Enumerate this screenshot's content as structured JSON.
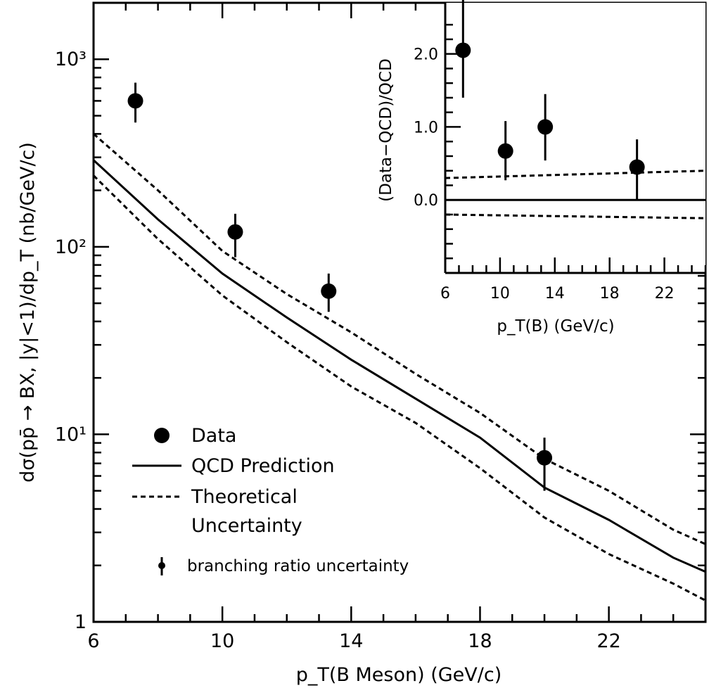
{
  "chart_data": [
    {
      "type": "scatter",
      "xlabel": "p_T(B Meson) (GeV/c)",
      "ylabel": "dσ(pp̄ → BX, |y|<1)/dp_T (nb/GeV/c)",
      "xlim": [
        6,
        25
      ],
      "ylim": [
        1,
        2000
      ],
      "yscale": "log",
      "x_ticks": [
        "6",
        "10",
        "14",
        "18",
        "22"
      ],
      "x_tick_values": [
        6,
        10,
        14,
        18,
        22
      ],
      "y_ticks": [
        "1",
        "10¹",
        "10²",
        "10³"
      ],
      "y_tick_values": [
        1,
        10,
        100,
        1000
      ],
      "legend_position": "bottom-left",
      "legend": [
        {
          "label": "Data",
          "marker": "filled-circle"
        },
        {
          "label": "QCD Prediction",
          "line": "solid"
        },
        {
          "label": "Theoretical",
          "line": "dashed"
        },
        {
          "label": "Uncertainty",
          "line": "none"
        },
        {
          "label": "branching ratio uncertainty",
          "marker": "small-dot-errorbar"
        }
      ],
      "series": [
        {
          "name": "Data",
          "kind": "points",
          "x": [
            7.3,
            10.4,
            13.3,
            20.0
          ],
          "y": [
            600,
            120,
            58,
            7.5
          ],
          "y_err_low": [
            460,
            88,
            45,
            5.0
          ],
          "y_err_high": [
            750,
            150,
            72,
            9.6
          ]
        },
        {
          "name": "QCD Prediction",
          "kind": "line",
          "style": "solid",
          "x": [
            6,
            8,
            10,
            12,
            14,
            16,
            18,
            20,
            22,
            24,
            25
          ],
          "y": [
            290,
            140,
            72,
            42,
            25,
            15.5,
            9.6,
            5.2,
            3.5,
            2.2,
            1.85
          ]
        },
        {
          "name": "Theoretical Uncertainty (upper)",
          "kind": "line",
          "style": "dashed",
          "x": [
            6,
            8,
            10,
            12,
            14,
            16,
            18,
            20,
            22,
            24,
            25
          ],
          "y": [
            400,
            200,
            95,
            56,
            35,
            21,
            13,
            7.4,
            5.0,
            3.1,
            2.6
          ]
        },
        {
          "name": "Theoretical Uncertainty (lower)",
          "kind": "line",
          "style": "dashed",
          "x": [
            6,
            8,
            10,
            12,
            14,
            16,
            18,
            20,
            22,
            24,
            25
          ],
          "y": [
            240,
            110,
            55,
            31,
            18,
            11.5,
            6.6,
            3.6,
            2.3,
            1.6,
            1.3
          ]
        }
      ]
    },
    {
      "type": "scatter",
      "inset": true,
      "xlabel": "p_T(B) (GeV/c)",
      "ylabel": "(Data−QCD)/QCD",
      "xlim": [
        6,
        25
      ],
      "ylim": [
        -1.0,
        2.7
      ],
      "x_ticks": [
        "6",
        "10",
        "14",
        "18",
        "22"
      ],
      "x_tick_values": [
        6,
        10,
        14,
        18,
        22
      ],
      "y_ticks": [
        "0.0",
        "1.0",
        "2.0"
      ],
      "y_tick_values": [
        0.0,
        1.0,
        2.0
      ],
      "series": [
        {
          "name": "Data",
          "kind": "points",
          "x": [
            7.3,
            10.4,
            13.3,
            20.0
          ],
          "y": [
            2.05,
            0.67,
            1.0,
            0.45
          ],
          "y_err_low": [
            1.4,
            0.27,
            0.54,
            0.0
          ],
          "y_err_high": [
            2.75,
            1.08,
            1.45,
            0.83
          ]
        },
        {
          "name": "Zero",
          "kind": "line",
          "style": "solid",
          "x": [
            6,
            25
          ],
          "y": [
            0.0,
            0.0
          ]
        },
        {
          "name": "Uncertainty upper",
          "kind": "line",
          "style": "dashed",
          "x": [
            6,
            25
          ],
          "y": [
            0.3,
            0.4
          ]
        },
        {
          "name": "Uncertainty lower",
          "kind": "line",
          "style": "dashed",
          "x": [
            6,
            25
          ],
          "y": [
            -0.2,
            -0.25
          ]
        }
      ]
    }
  ]
}
